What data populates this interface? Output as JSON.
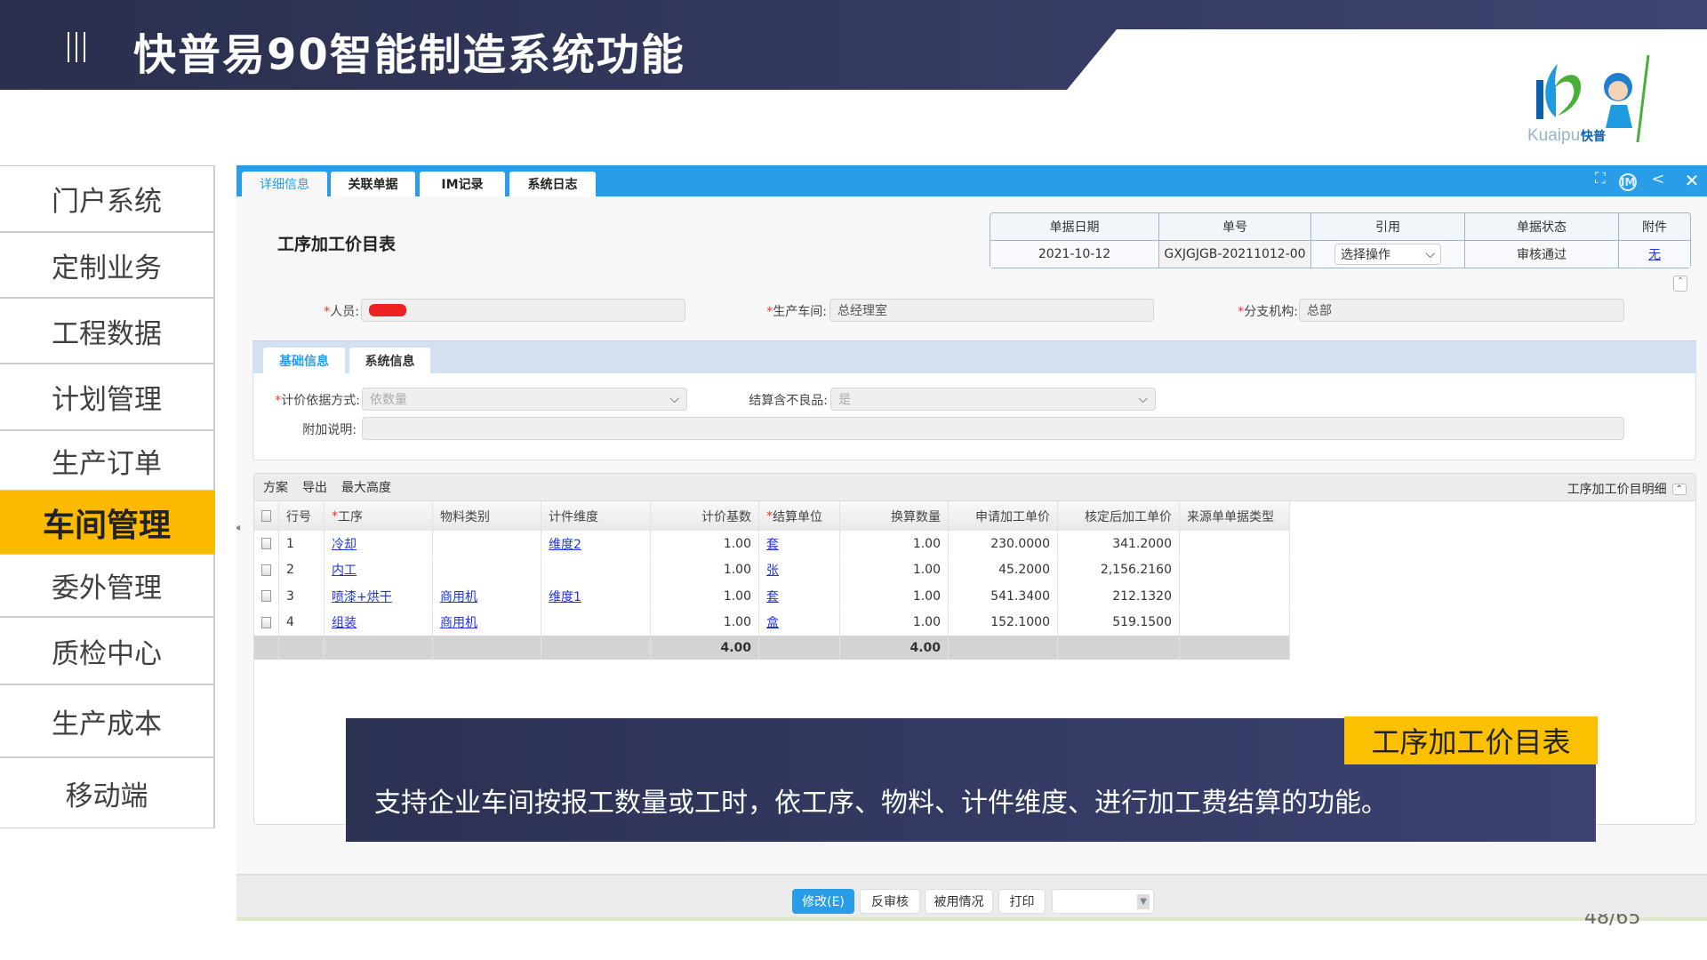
{
  "header": {
    "title": "快普易90智能制造系统功能",
    "menu_icon": "triple-bar-icon"
  },
  "logo": {
    "text": "Kuaipu",
    "cn": "快普"
  },
  "sidebar": {
    "items": [
      {
        "label": "门户系统"
      },
      {
        "label": "定制业务"
      },
      {
        "label": "工程数据"
      },
      {
        "label": "计划管理"
      },
      {
        "label": "生产订单"
      },
      {
        "label": "车间管理",
        "active": true
      },
      {
        "label": "委外管理"
      },
      {
        "label": "质检中心"
      },
      {
        "label": "生产成本"
      },
      {
        "label": "移动端"
      }
    ]
  },
  "app": {
    "tabs": [
      {
        "label": "详细信息",
        "active": true
      },
      {
        "label": "关联单据"
      },
      {
        "label": "IM记录"
      },
      {
        "label": "系统日志"
      }
    ],
    "window_icons": [
      "expand-icon",
      "im-icon",
      "share-icon",
      "close-icon"
    ],
    "doc_title": "工序加工价目表",
    "info": {
      "headers": [
        "单据日期",
        "单号",
        "引用",
        "单据状态",
        "附件"
      ],
      "date": "2021-10-12",
      "number": "GXJGJGB-20211012-00",
      "ref_select": "选择操作",
      "status": "审核通过",
      "attachment": "无"
    },
    "fields": {
      "person_label": "人员:",
      "person_value": "",
      "workshop_label": "生产车间:",
      "workshop_value": "总经理室",
      "branch_label": "分支机构:",
      "branch_value": "总部"
    },
    "subtabs": [
      {
        "label": "基础信息",
        "active": true
      },
      {
        "label": "系统信息"
      }
    ],
    "form": {
      "pricing_label": "计价依据方式:",
      "pricing_value": "依数量",
      "defect_label": "结算含不良品:",
      "defect_value": "是",
      "note_label": "附加说明:",
      "note_value": ""
    },
    "grid": {
      "toolbar": [
        "方案",
        "导出",
        "最大高度"
      ],
      "title": "工序加工价目明细",
      "columns": [
        {
          "label": ""
        },
        {
          "label": "行号"
        },
        {
          "label": "工序",
          "required": true
        },
        {
          "label": "物料类别"
        },
        {
          "label": "计件维度"
        },
        {
          "label": "计价基数",
          "align": "r"
        },
        {
          "label": "结算单位",
          "required": true
        },
        {
          "label": "换算数量",
          "align": "r"
        },
        {
          "label": "申请加工单价",
          "align": "r"
        },
        {
          "label": "核定后加工单价",
          "align": "r"
        },
        {
          "label": "来源单单据类型"
        }
      ],
      "rows": [
        [
          "",
          "1",
          "冷却",
          "",
          "维度2",
          "1.00",
          "套",
          "1.00",
          "230.0000",
          "341.2000",
          ""
        ],
        [
          "",
          "2",
          "内工",
          "",
          "",
          "1.00",
          "张",
          "1.00",
          "45.2000",
          "2,156.2160",
          ""
        ],
        [
          "",
          "3",
          "喷漆+烘干",
          "商用机",
          "维度1",
          "1.00",
          "套",
          "1.00",
          "541.3400",
          "212.1320",
          ""
        ],
        [
          "",
          "4",
          "组装",
          "商用机",
          "",
          "1.00",
          "盒",
          "1.00",
          "152.1000",
          "519.1500",
          ""
        ]
      ],
      "totals": [
        "",
        "",
        "",
        "",
        "",
        "4.00",
        "",
        "4.00",
        "",
        "",
        ""
      ]
    },
    "buttons": [
      "修改(E)",
      "反审核",
      "被用情况",
      "打印"
    ],
    "bottom_select": ""
  },
  "callout": {
    "label": "工序加工价目表",
    "text": "支持企业车间按报工数量或工时，依工序、物料、计件维度、进行加工费结算的功能。"
  },
  "page_number": "48/65",
  "colors": {
    "accent": "#2a9de8",
    "highlight": "#fbc000",
    "header": "#353b5f",
    "link": "#2233dd"
  }
}
